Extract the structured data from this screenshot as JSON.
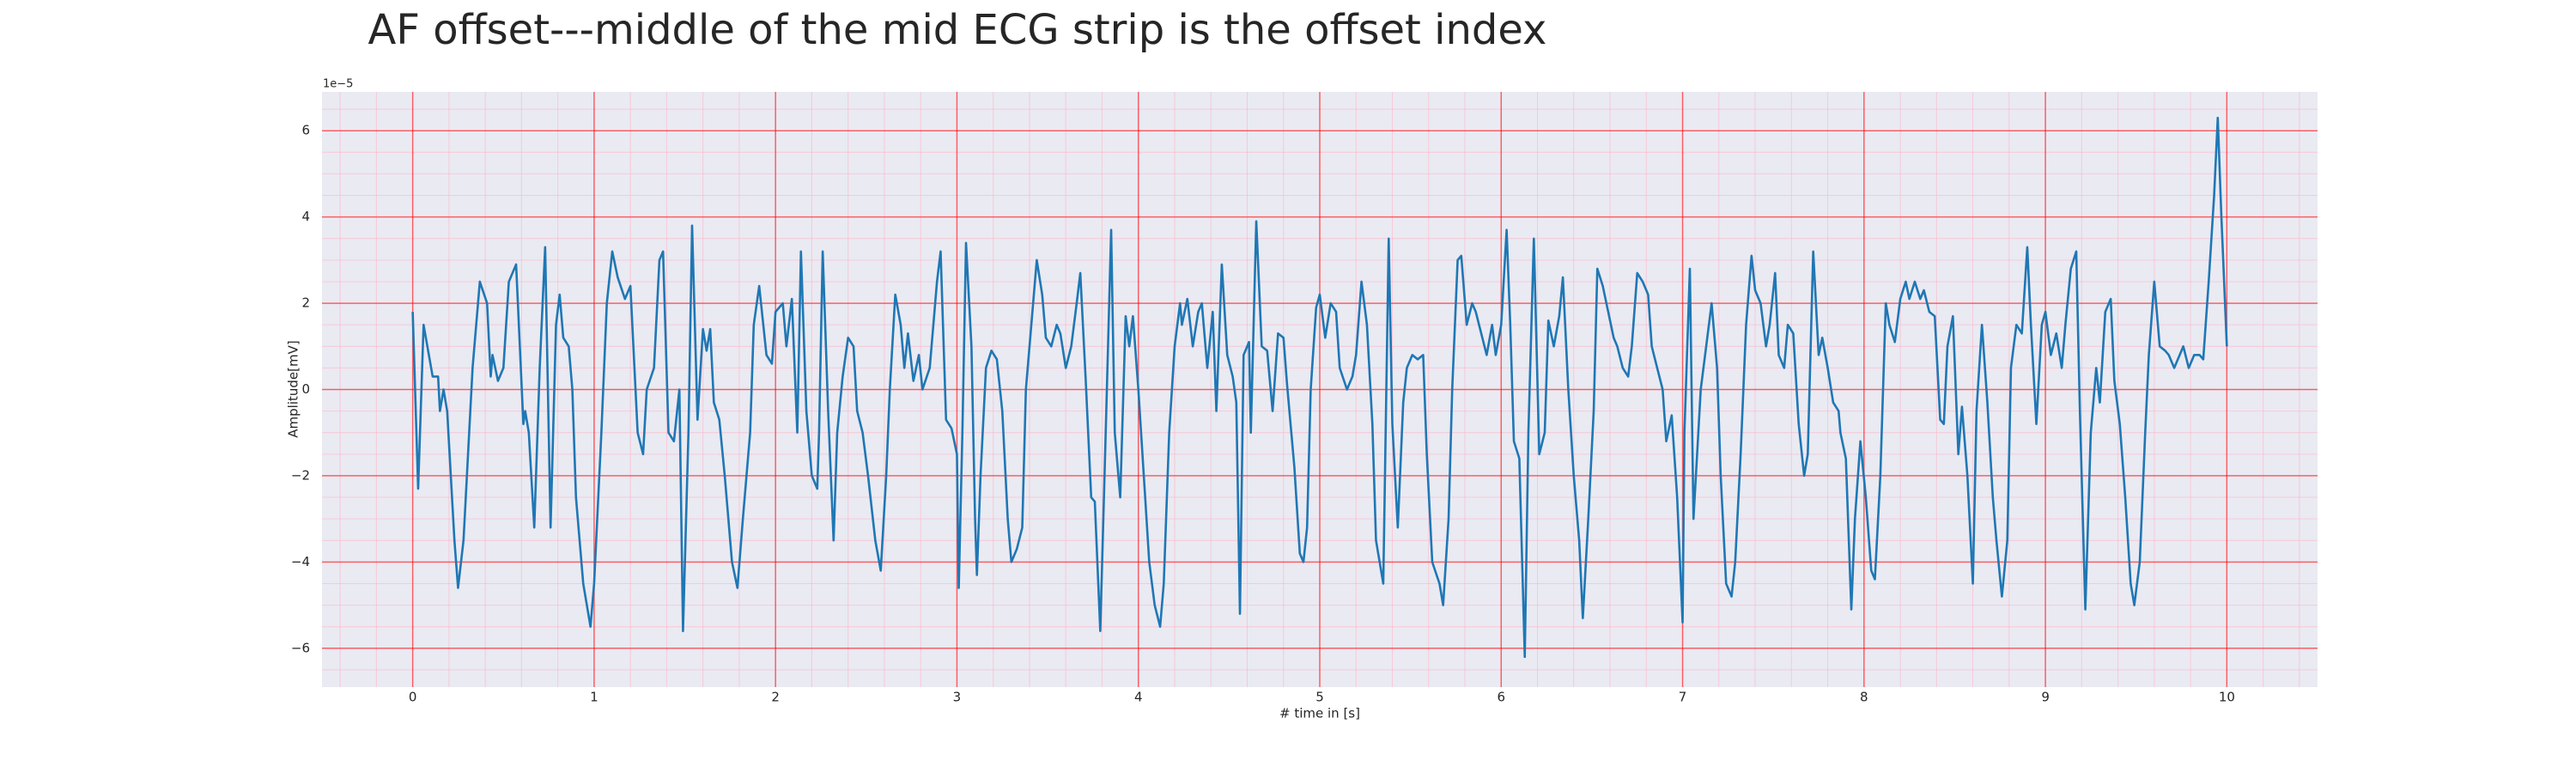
{
  "chart_data": {
    "type": "line",
    "title": "AF offset---middle of the mid ECG strip is the offset index",
    "x_label": "# time in [s]",
    "y_label": "Amplitude[mV]",
    "y_offset_label": "1e−5",
    "color": "#1f77b4",
    "grid": true,
    "minor_grid": true,
    "xlim": [
      -0.5,
      10.5
    ],
    "ylim": [
      -6.9e-05,
      6.9e-05
    ],
    "xticks": [
      0,
      1,
      2,
      3,
      4,
      5,
      6,
      7,
      8,
      9,
      10
    ],
    "yticks": [
      {
        "value": -6e-05,
        "label": "−6"
      },
      {
        "value": -4e-05,
        "label": "−4"
      },
      {
        "value": -2e-05,
        "label": "−2"
      },
      0,
      {
        "value": 2e-05,
        "label": "2"
      },
      {
        "value": 4e-05,
        "label": "4"
      },
      {
        "value": 6e-05,
        "label": "6"
      }
    ],
    "x": [
      0,
      0.03,
      0.06,
      0.11,
      0.14,
      0.15,
      0.17,
      0.19,
      0.23,
      0.25,
      0.28,
      0.33,
      0.37,
      0.41,
      0.43,
      0.44,
      0.47,
      0.5,
      0.53,
      0.57,
      0.61,
      0.62,
      0.64,
      0.67,
      0.7,
      0.73,
      0.76,
      0.79,
      0.81,
      0.83,
      0.86,
      0.88,
      0.9,
      0.94,
      0.98,
      1.0,
      1.04,
      1.07,
      1.1,
      1.13,
      1.17,
      1.2,
      1.24,
      1.27,
      1.29,
      1.33,
      1.36,
      1.38,
      1.41,
      1.44,
      1.47,
      1.49,
      1.52,
      1.54,
      1.57,
      1.6,
      1.62,
      1.64,
      1.66,
      1.69,
      1.72,
      1.76,
      1.79,
      1.82,
      1.86,
      1.88,
      1.91,
      1.95,
      1.98,
      2.0,
      2.04,
      2.06,
      2.09,
      2.12,
      2.14,
      2.17,
      2.2,
      2.23,
      2.24,
      2.26,
      2.29,
      2.32,
      2.34,
      2.37,
      2.4,
      2.43,
      2.45,
      2.48,
      2.51,
      2.55,
      2.58,
      2.61,
      2.63,
      2.66,
      2.69,
      2.71,
      2.73,
      2.76,
      2.79,
      2.81,
      2.85,
      2.89,
      2.91,
      2.94,
      2.97,
      3.0,
      3.01,
      3.03,
      3.05,
      3.08,
      3.1,
      3.11,
      3.13,
      3.16,
      3.19,
      3.22,
      3.25,
      3.28,
      3.3,
      3.33,
      3.36,
      3.38,
      3.41,
      3.44,
      3.47,
      3.49,
      3.52,
      3.55,
      3.57,
      3.6,
      3.63,
      3.66,
      3.68,
      3.71,
      3.74,
      3.76,
      3.79,
      3.82,
      3.85,
      3.87,
      3.9,
      3.93,
      3.95,
      3.97,
      4.0,
      4.03,
      4.06,
      4.09,
      4.12,
      4.14,
      4.17,
      4.2,
      4.23,
      4.24,
      4.27,
      4.3,
      4.33,
      4.35,
      4.38,
      4.41,
      4.43,
      4.46,
      4.49,
      4.52,
      4.54,
      4.56,
      4.58,
      4.61,
      4.62,
      4.65,
      4.68,
      4.71,
      4.74,
      4.77,
      4.8,
      4.82,
      4.86,
      4.89,
      4.91,
      4.93,
      4.95,
      4.98,
      5.0,
      5.03,
      5.06,
      5.09,
      5.11,
      5.15,
      5.18,
      5.2,
      5.23,
      5.26,
      5.29,
      5.31,
      5.35,
      5.38,
      5.4,
      5.43,
      5.46,
      5.48,
      5.51,
      5.54,
      5.57,
      5.59,
      5.62,
      5.66,
      5.68,
      5.71,
      5.73,
      5.76,
      5.78,
      5.81,
      5.84,
      5.86,
      5.89,
      5.92,
      5.95,
      5.97,
      6.0,
      6.03,
      6.05,
      6.07,
      6.1,
      6.13,
      6.15,
      6.18,
      6.21,
      6.24,
      6.26,
      6.29,
      6.32,
      6.34,
      6.37,
      6.4,
      6.43,
      6.45,
      6.48,
      6.51,
      6.53,
      6.56,
      6.59,
      6.62,
      6.64,
      6.67,
      6.7,
      6.72,
      6.75,
      6.78,
      6.81,
      6.83,
      6.86,
      6.89,
      6.91,
      6.94,
      6.97,
      7.0,
      7.01,
      7.04,
      7.06,
      7.08,
      7.1,
      7.13,
      7.16,
      7.19,
      7.21,
      7.24,
      7.27,
      7.29,
      7.32,
      7.35,
      7.38,
      7.4,
      7.43,
      7.46,
      7.48,
      7.51,
      7.53,
      7.56,
      7.58,
      7.61,
      7.64,
      7.67,
      7.69,
      7.72,
      7.75,
      7.77,
      7.8,
      7.83,
      7.86,
      7.87,
      7.9,
      7.93,
      7.95,
      7.98,
      8.01,
      8.04,
      8.06,
      8.09,
      8.12,
      8.14,
      8.17,
      8.2,
      8.23,
      8.25,
      8.28,
      8.31,
      8.33,
      8.36,
      8.39,
      8.42,
      8.44,
      8.46,
      8.49,
      8.52,
      8.54,
      8.57,
      8.6,
      8.62,
      8.65,
      8.68,
      8.71,
      8.73,
      8.76,
      8.79,
      8.81,
      8.84,
      8.87,
      8.9,
      8.92,
      8.95,
      8.98,
      9.0,
      9.03,
      9.06,
      9.09,
      9.11,
      9.14,
      9.17,
      9.19,
      9.22,
      9.25,
      9.28,
      9.3,
      9.33,
      9.36,
      9.38,
      9.41,
      9.44,
      9.47,
      9.49,
      9.52,
      9.55,
      9.57,
      9.6,
      9.63,
      9.66,
      9.68,
      9.71,
      9.74,
      9.76,
      9.79,
      9.82,
      9.85,
      9.87,
      9.9,
      9.93,
      9.95,
      9.97,
      10.0
    ],
    "values": [
      1.8e-05,
      -2.3e-05,
      1.5e-05,
      3e-06,
      3e-06,
      -5e-06,
      0,
      -5e-06,
      -3.5e-05,
      -4.6e-05,
      -3.5e-05,
      5e-06,
      2.5e-05,
      2e-05,
      3e-06,
      8e-06,
      2e-06,
      5e-06,
      2.5e-05,
      2.9e-05,
      -8e-06,
      -5e-06,
      -1e-05,
      -3.2e-05,
      5e-06,
      3.3e-05,
      -3.2e-05,
      1.5e-05,
      2.2e-05,
      1.2e-05,
      1e-05,
      0,
      -2.5e-05,
      -4.5e-05,
      -5.5e-05,
      -4.5e-05,
      -1e-05,
      2e-05,
      3.2e-05,
      2.6e-05,
      2.1e-05,
      2.4e-05,
      -1e-05,
      -1.5e-05,
      0,
      5e-06,
      3e-05,
      3.2e-05,
      -1e-05,
      -1.2e-05,
      0,
      -5.6e-05,
      -1e-05,
      3.8e-05,
      -7e-06,
      1.4e-05,
      9e-06,
      1.4e-05,
      -3e-06,
      -7e-06,
      -2e-05,
      -4e-05,
      -4.6e-05,
      -3e-05,
      -1e-05,
      1.5e-05,
      2.4e-05,
      8e-06,
      6e-06,
      1.8e-05,
      2e-05,
      1e-05,
      2.1e-05,
      -1e-05,
      3.2e-05,
      -5e-06,
      -2e-05,
      -2.3e-05,
      -1e-05,
      3.2e-05,
      -5e-06,
      -3.5e-05,
      -1e-05,
      3e-06,
      1.2e-05,
      1e-05,
      -5e-06,
      -1e-05,
      -2e-05,
      -3.5e-05,
      -4.2e-05,
      -2e-05,
      0,
      2.2e-05,
      1.5e-05,
      5e-06,
      1.3e-05,
      2e-06,
      8e-06,
      0,
      5e-06,
      2.5e-05,
      3.2e-05,
      -7e-06,
      -9e-06,
      -1.5e-05,
      -4.6e-05,
      -1e-05,
      3.4e-05,
      1e-05,
      -3e-05,
      -4.3e-05,
      -2e-05,
      5e-06,
      9e-06,
      7e-06,
      -5e-06,
      -3e-05,
      -4e-05,
      -3.7e-05,
      -3.2e-05,
      0,
      1.5e-05,
      3e-05,
      2.2e-05,
      1.2e-05,
      1e-05,
      1.5e-05,
      1.3e-05,
      5e-06,
      1e-05,
      2e-05,
      2.7e-05,
      2e-06,
      -2.5e-05,
      -2.6e-05,
      -5.6e-05,
      -1e-05,
      3.7e-05,
      -1e-05,
      -2.5e-05,
      1.7e-05,
      1e-05,
      1.7e-05,
      0,
      -2e-05,
      -4e-05,
      -5e-05,
      -5.5e-05,
      -4.5e-05,
      -1e-05,
      1e-05,
      2e-05,
      1.5e-05,
      2.1e-05,
      1e-05,
      1.8e-05,
      2e-05,
      5e-06,
      1.8e-05,
      -5e-06,
      2.9e-05,
      8e-06,
      3e-06,
      -3e-06,
      -5.2e-05,
      8e-06,
      1.1e-05,
      -1e-05,
      3.9e-05,
      1e-05,
      9e-06,
      -5e-06,
      1.3e-05,
      1.2e-05,
      1e-06,
      -1.8e-05,
      -3.8e-05,
      -4e-05,
      -3.2e-05,
      0,
      1.9e-05,
      2.2e-05,
      1.2e-05,
      2e-05,
      1.8e-05,
      5e-06,
      0,
      3e-06,
      8e-06,
      2.5e-05,
      1.5e-05,
      -8e-06,
      -3.5e-05,
      -4.5e-05,
      3.5e-05,
      -8e-06,
      -3.2e-05,
      -3e-06,
      5e-06,
      8e-06,
      7e-06,
      8e-06,
      -1.5e-05,
      -4e-05,
      -4.5e-05,
      -5e-05,
      -3e-05,
      0,
      3e-05,
      3.1e-05,
      1.5e-05,
      2e-05,
      1.8e-05,
      1.3e-05,
      8e-06,
      1.5e-05,
      8e-06,
      1.5e-05,
      3.7e-05,
      1.5e-05,
      -1.2e-05,
      -1.6e-05,
      -6.2e-05,
      -1e-05,
      3.5e-05,
      -1.5e-05,
      -1e-05,
      1.6e-05,
      1e-05,
      1.7e-05,
      2.6e-05,
      0,
      -2e-05,
      -3.5e-05,
      -5.3e-05,
      -3e-05,
      -5e-06,
      2.8e-05,
      2.4e-05,
      1.8e-05,
      1.2e-05,
      1e-05,
      5e-06,
      3e-06,
      1e-05,
      2.7e-05,
      2.5e-05,
      2.2e-05,
      1e-05,
      5e-06,
      0,
      -1.2e-05,
      -6e-06,
      -2.5e-05,
      -5.4e-05,
      -1e-05,
      2.8e-05,
      -3e-05,
      -1.5e-05,
      0,
      1e-05,
      2e-05,
      5e-06,
      -2e-05,
      -4.5e-05,
      -4.8e-05,
      -4e-05,
      -1.5e-05,
      1.5e-05,
      3.1e-05,
      2.3e-05,
      2e-05,
      1e-05,
      1.5e-05,
      2.7e-05,
      8e-06,
      5e-06,
      1.5e-05,
      1.3e-05,
      -8e-06,
      -2e-05,
      -1.5e-05,
      3.2e-05,
      8e-06,
      1.2e-05,
      5e-06,
      -3e-06,
      -5e-06,
      -1e-05,
      -1.6e-05,
      -5.1e-05,
      -3e-05,
      -1.2e-05,
      -2.5e-05,
      -4.2e-05,
      -4.4e-05,
      -2e-05,
      2e-05,
      1.5e-05,
      1.1e-05,
      2.1e-05,
      2.5e-05,
      2.1e-05,
      2.5e-05,
      2.1e-05,
      2.3e-05,
      1.8e-05,
      1.7e-05,
      -7e-06,
      -8e-06,
      1e-05,
      1.7e-05,
      -1.5e-05,
      -4e-06,
      -2e-05,
      -4.5e-05,
      -5e-06,
      1.5e-05,
      -3e-06,
      -2.5e-05,
      -3.5e-05,
      -4.8e-05,
      -3.5e-05,
      5e-06,
      1.5e-05,
      1.3e-05,
      3.3e-05,
      1.5e-05,
      -8e-06,
      1.5e-05,
      1.8e-05,
      8e-06,
      1.3e-05,
      5e-06,
      1.5e-05,
      2.8e-05,
      3.2e-05,
      -5e-06,
      -5.1e-05,
      -1e-05,
      5e-06,
      -3e-06,
      1.8e-05,
      2.1e-05,
      2e-06,
      -8e-06,
      -2.5e-05,
      -4.5e-05,
      -5e-05,
      -4e-05,
      -1e-05,
      8e-06,
      2.5e-05,
      1e-05,
      9e-06,
      8e-06,
      5e-06,
      8e-06,
      1e-05,
      5e-06,
      8e-06,
      8e-06,
      7e-06,
      2.5e-05,
      4.5e-05,
      6.3e-05,
      4e-05,
      1e-05
    ]
  }
}
